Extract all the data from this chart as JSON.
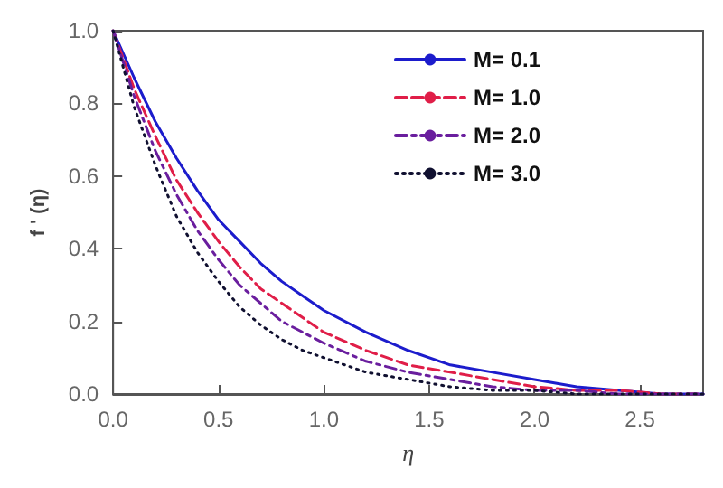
{
  "chart_data": {
    "type": "line",
    "xlabel": "η",
    "ylabel": "f ' (η)",
    "xlim": [
      0,
      2.8
    ],
    "ylim": [
      0,
      1
    ],
    "xticks": [
      {
        "value": 0,
        "label": "0.0"
      },
      {
        "value": 0.5,
        "label": "0.5"
      },
      {
        "value": 1,
        "label": "1.0"
      },
      {
        "value": 1.5,
        "label": "1.5"
      },
      {
        "value": 2,
        "label": "2.0"
      },
      {
        "value": 2.5,
        "label": "2.5"
      }
    ],
    "yticks": [
      {
        "value": 0,
        "label": "0.0"
      },
      {
        "value": 0.2,
        "label": "0.2"
      },
      {
        "value": 0.4,
        "label": "0.4"
      },
      {
        "value": 0.6,
        "label": "0.6"
      },
      {
        "value": 0.8,
        "label": "0.8"
      },
      {
        "value": 1,
        "label": "1.0"
      }
    ],
    "x": [
      0,
      0.1,
      0.2,
      0.3,
      0.4,
      0.5,
      0.6,
      0.7,
      0.8,
      0.9,
      1.0,
      1.2,
      1.4,
      1.6,
      1.8,
      2.0,
      2.2,
      2.4,
      2.6,
      2.8
    ],
    "grid": false,
    "legend": "top right",
    "marker": "none",
    "series": [
      {
        "name": "M= 0.1",
        "color": "#1c1ccc",
        "line_style": "solid",
        "values": [
          1,
          0.87,
          0.75,
          0.65,
          0.56,
          0.48,
          0.42,
          0.36,
          0.31,
          0.27,
          0.23,
          0.17,
          0.12,
          0.08,
          0.06,
          0.04,
          0.02,
          0.01,
          0,
          0
        ]
      },
      {
        "name": "M= 1.0",
        "color": "#e01e48",
        "line_style": "dashed",
        "values": [
          1,
          0.84,
          0.71,
          0.59,
          0.5,
          0.42,
          0.35,
          0.29,
          0.25,
          0.21,
          0.17,
          0.12,
          0.08,
          0.06,
          0.04,
          0.02,
          0.01,
          0.01,
          0,
          0
        ]
      },
      {
        "name": "M= 2.0",
        "color": "#6a1e9e",
        "line_style": "dashdot",
        "values": [
          1,
          0.82,
          0.67,
          0.55,
          0.45,
          0.37,
          0.3,
          0.25,
          0.2,
          0.17,
          0.14,
          0.09,
          0.06,
          0.04,
          0.02,
          0.01,
          0.01,
          0,
          0,
          0
        ]
      },
      {
        "name": "M= 3.0",
        "color": "#101030",
        "line_style": "dotted",
        "values": [
          1,
          0.79,
          0.63,
          0.49,
          0.39,
          0.31,
          0.24,
          0.19,
          0.15,
          0.12,
          0.1,
          0.06,
          0.04,
          0.02,
          0.01,
          0.01,
          0,
          0,
          0,
          0
        ]
      }
    ]
  }
}
